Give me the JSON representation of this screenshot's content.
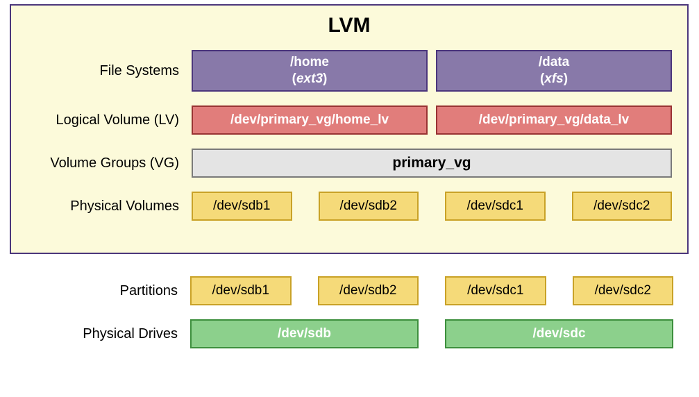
{
  "title": "LVM",
  "colors": {
    "container_bg": "#fcfada",
    "container_border": "#4b367c",
    "fs_fill": "#8879a9",
    "fs_border": "#4b367c",
    "lv_fill": "#e17d7b",
    "lv_border": "#993333",
    "vg_fill": "#e4e4e4",
    "vg_border": "#7a7a7a",
    "pv_fill": "#f5da79",
    "pv_border": "#c9a227",
    "drive_fill": "#8cd08c",
    "drive_border": "#3d8f3d",
    "text_dark": "#000000"
  },
  "rows": {
    "fs": {
      "label": "File Systems",
      "items": [
        {
          "mount": "/home",
          "fstype": "ext3"
        },
        {
          "mount": "/data",
          "fstype": "xfs"
        }
      ]
    },
    "lv": {
      "label": "Logical Volume (LV)",
      "items": [
        "/dev/primary_vg/home_lv",
        "/dev/primary_vg/data_lv"
      ]
    },
    "vg": {
      "label": "Volume Groups (VG)",
      "name": "primary_vg"
    },
    "pv": {
      "label": "Physical Volumes",
      "items": [
        "/dev/sdb1",
        "/dev/sdb2",
        "/dev/sdc1",
        "/dev/sdc2"
      ]
    },
    "part": {
      "label": "Partitions",
      "items": [
        "/dev/sdb1",
        "/dev/sdb2",
        "/dev/sdc1",
        "/dev/sdc2"
      ]
    },
    "drives": {
      "label": "Physical Drives",
      "items": [
        "/dev/sdb",
        "/dev/sdc"
      ]
    }
  }
}
